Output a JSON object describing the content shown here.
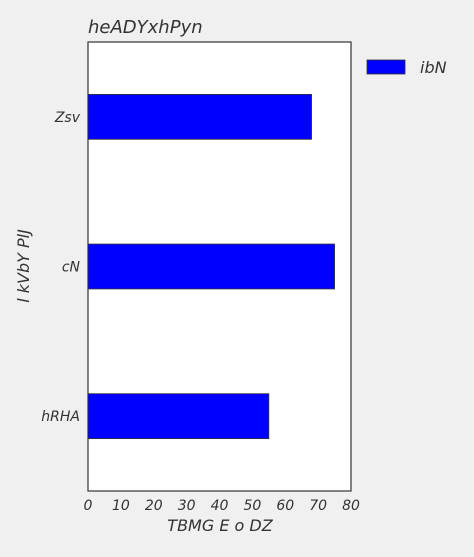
{
  "chart_data": {
    "type": "bar",
    "orientation": "horizontal",
    "title": "heADYxhPyn",
    "xlabel": "TBMG E o DZ",
    "ylabel": "l kVbY PlJ",
    "categories": [
      "Zsv",
      "cN",
      "hRHA"
    ],
    "series": [
      {
        "name": "ibN",
        "values": [
          68,
          75,
          55
        ],
        "color": "#0000ff"
      }
    ],
    "xlim": [
      0,
      80
    ],
    "xticks": [
      0,
      10,
      20,
      30,
      40,
      50,
      60,
      70,
      80
    ],
    "grid": false,
    "legend_position": "outside-top-right"
  }
}
